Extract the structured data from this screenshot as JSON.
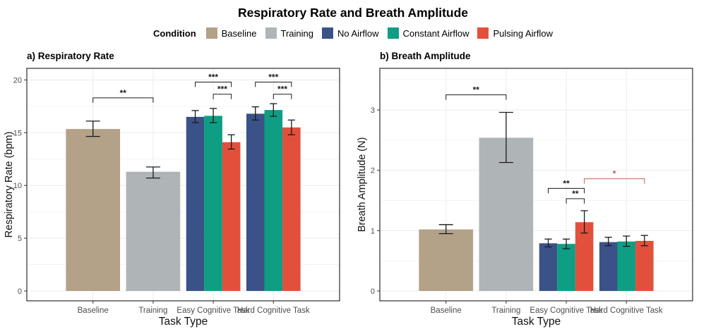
{
  "title": "Respiratory Rate and Breath Amplitude",
  "legend": {
    "title": "Condition",
    "items": [
      {
        "label": "Baseline",
        "color": "#B3A188"
      },
      {
        "label": "Training",
        "color": "#AFB5B7"
      },
      {
        "label": "No Airflow",
        "color": "#3A5287"
      },
      {
        "label": "Constant Airflow",
        "color": "#0D9E83"
      },
      {
        "label": "Pulsing Airflow",
        "color": "#E2503C"
      }
    ]
  },
  "style_colors": {
    "grid_major": "#ECECEC",
    "grid_minor": "#F5F5F5",
    "panel_border": "#2B2B2B",
    "tick_label": "#4D4D4D",
    "axis_title": "#111111",
    "error_bar": "#1A1A1A",
    "bracket_default": "#1A1A1A",
    "bracket_red": "#C85A4A"
  },
  "chart_data": [
    {
      "type": "bar",
      "panel_label": "a) Respiratory Rate",
      "xlabel": "Task Type",
      "ylabel": "Respiratory Rate (bpm)",
      "ylim": [
        0,
        21.1
      ],
      "yticks": [
        0,
        5,
        10,
        15,
        20
      ],
      "y_minor_step": 2.5,
      "categories": [
        "Baseline",
        "Training",
        "Easy Cognitive Task",
        "Hard Cognitive Task"
      ],
      "groups": [
        {
          "category": "Baseline",
          "bars": [
            {
              "condition": "Baseline",
              "value": 15.35,
              "ci": [
                14.65,
                16.1
              ]
            }
          ]
        },
        {
          "category": "Training",
          "bars": [
            {
              "condition": "Training",
              "value": 11.3,
              "ci": [
                10.7,
                11.75
              ]
            }
          ]
        },
        {
          "category": "Easy Cognitive Task",
          "bars": [
            {
              "condition": "No Airflow",
              "value": 16.5,
              "ci": [
                15.95,
                17.1
              ]
            },
            {
              "condition": "Constant Airflow",
              "value": 16.6,
              "ci": [
                15.95,
                17.3
              ]
            },
            {
              "condition": "Pulsing Airflow",
              "value": 14.1,
              "ci": [
                13.45,
                14.8
              ]
            }
          ]
        },
        {
          "category": "Hard Cognitive Task",
          "bars": [
            {
              "condition": "No Airflow",
              "value": 16.8,
              "ci": [
                16.2,
                17.45
              ]
            },
            {
              "condition": "Constant Airflow",
              "value": 17.15,
              "ci": [
                16.55,
                17.75
              ]
            },
            {
              "condition": "Pulsing Airflow",
              "value": 15.5,
              "ci": [
                14.8,
                16.2
              ]
            }
          ]
        }
      ],
      "significance": [
        {
          "c1": 0,
          "b1": 0,
          "c2": 1,
          "b2": 0,
          "y": 18.3,
          "label": "**",
          "color": "default"
        },
        {
          "c1": 2,
          "b1": 0,
          "c2": 2,
          "b2": 2,
          "y": 19.8,
          "label": "***",
          "color": "default"
        },
        {
          "c1": 2,
          "b1": 1,
          "c2": 2,
          "b2": 2,
          "y": 18.65,
          "label": "***",
          "color": "default"
        },
        {
          "c1": 3,
          "b1": 0,
          "c2": 3,
          "b2": 2,
          "y": 19.8,
          "label": "***",
          "color": "default"
        },
        {
          "c1": 3,
          "b1": 1,
          "c2": 3,
          "b2": 2,
          "y": 18.65,
          "label": "***",
          "color": "default"
        }
      ]
    },
    {
      "type": "bar",
      "panel_label": "b) Breath Amplitude",
      "xlabel": "Task Type",
      "ylabel": "Breath Amplitude (N)",
      "ylim": [
        0,
        3.69
      ],
      "yticks": [
        0,
        1,
        2,
        3
      ],
      "y_minor_step": 0.5,
      "categories": [
        "Baseline",
        "Training",
        "Easy Cognitive Task",
        "Hard Cognitive Task"
      ],
      "groups": [
        {
          "category": "Baseline",
          "bars": [
            {
              "condition": "Baseline",
              "value": 1.02,
              "ci": [
                0.95,
                1.1
              ]
            }
          ]
        },
        {
          "category": "Training",
          "bars": [
            {
              "condition": "Training",
              "value": 2.54,
              "ci": [
                2.13,
                2.96
              ]
            }
          ]
        },
        {
          "category": "Easy Cognitive Task",
          "bars": [
            {
              "condition": "No Airflow",
              "value": 0.79,
              "ci": [
                0.73,
                0.86
              ]
            },
            {
              "condition": "Constant Airflow",
              "value": 0.78,
              "ci": [
                0.7,
                0.86
              ]
            },
            {
              "condition": "Pulsing Airflow",
              "value": 1.14,
              "ci": [
                0.96,
                1.33
              ]
            }
          ]
        },
        {
          "category": "Hard Cognitive Task",
          "bars": [
            {
              "condition": "No Airflow",
              "value": 0.81,
              "ci": [
                0.75,
                0.89
              ]
            },
            {
              "condition": "Constant Airflow",
              "value": 0.82,
              "ci": [
                0.74,
                0.91
              ]
            },
            {
              "condition": "Pulsing Airflow",
              "value": 0.83,
              "ci": [
                0.75,
                0.92
              ]
            }
          ]
        }
      ],
      "significance": [
        {
          "c1": 0,
          "b1": 0,
          "c2": 1,
          "b2": 0,
          "y": 3.25,
          "label": "**",
          "color": "default"
        },
        {
          "c1": 2,
          "b1": 0,
          "c2": 2,
          "b2": 2,
          "y": 1.7,
          "label": "**",
          "color": "default"
        },
        {
          "c1": 2,
          "b1": 1,
          "c2": 2,
          "b2": 2,
          "y": 1.53,
          "label": "**",
          "color": "default"
        },
        {
          "c1": 2,
          "b1": 2,
          "c2": 3,
          "b2": 2,
          "y": 1.86,
          "label": "*",
          "color": "red"
        }
      ]
    }
  ]
}
